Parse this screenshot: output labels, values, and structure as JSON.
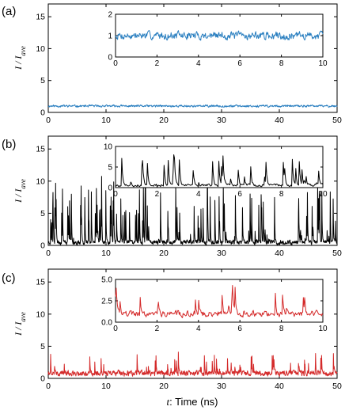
{
  "chart_data": [
    {
      "type": "line",
      "panel_label": "(a)",
      "ylabel_main": "I",
      "ylabel_sep": " / ",
      "ylabel_sub_base": "I",
      "ylabel_sub": "ave",
      "xlim": [
        0,
        50
      ],
      "ylim": [
        0,
        17
      ],
      "xticks": [
        0,
        10,
        20,
        30,
        40,
        50
      ],
      "yticks": [
        0,
        5,
        10,
        15
      ],
      "color": "#2a7fc0",
      "series_profile": {
        "baseline": 1.0,
        "noise": 0.25,
        "spike_prob": 0.0,
        "spike_max": 0,
        "x_max": 50,
        "points": 900,
        "seed": 11,
        "max_val": 2.2
      },
      "inset": {
        "xlim": [
          0,
          10
        ],
        "ylim": [
          0,
          2
        ],
        "xticks": [
          0,
          2,
          4,
          6,
          8,
          10
        ],
        "yticks": [
          0,
          1,
          2
        ],
        "series_profile": {
          "baseline": 1.0,
          "noise": 0.28,
          "spike_prob": 0.0,
          "spike_max": 0,
          "x_max": 10,
          "points": 400,
          "seed": 7,
          "max_val": 1.9
        }
      }
    },
    {
      "type": "line",
      "panel_label": "(b)",
      "ylabel_main": "I",
      "ylabel_sep": " / ",
      "ylabel_sub_base": "I",
      "ylabel_sub": "ave",
      "xlim": [
        0,
        50
      ],
      "ylim": [
        0,
        17
      ],
      "xticks": [
        0,
        10,
        20,
        30,
        40,
        50
      ],
      "yticks": [
        0,
        5,
        10,
        15
      ],
      "color": "#000000",
      "series_profile": {
        "baseline": 0.5,
        "noise": 0.5,
        "spike_prob": 0.12,
        "spike_max": 9,
        "x_max": 50,
        "points": 1100,
        "seed": 23,
        "max_val": 11
      },
      "inset": {
        "xlim": [
          0,
          10
        ],
        "ylim": [
          0,
          10
        ],
        "xticks": [
          0,
          2,
          4,
          6,
          8,
          10
        ],
        "yticks": [
          0,
          5,
          10
        ],
        "series_profile": {
          "baseline": 0.6,
          "noise": 0.5,
          "spike_prob": 0.1,
          "spike_max": 6.5,
          "x_max": 10,
          "points": 300,
          "seed": 5,
          "max_val": 8
        }
      }
    },
    {
      "type": "line",
      "panel_label": "(c)",
      "ylabel_main": "I",
      "ylabel_sep": " / ",
      "ylabel_sub_base": "I",
      "ylabel_sub": "ave",
      "xlim": [
        0,
        50
      ],
      "ylim": [
        0,
        17
      ],
      "xticks": [
        0,
        10,
        20,
        30,
        40,
        50
      ],
      "yticks": [
        0,
        5,
        10,
        15
      ],
      "color": "#d42a2a",
      "series_profile": {
        "baseline": 0.8,
        "noise": 0.6,
        "spike_prob": 0.06,
        "spike_max": 3.2,
        "x_max": 50,
        "points": 1100,
        "seed": 41,
        "max_val": 4.8
      },
      "inset": {
        "xlim": [
          0,
          10
        ],
        "ylim": [
          0,
          5
        ],
        "xticks": [
          0,
          2,
          4,
          6,
          8,
          10
        ],
        "yticks": [
          0.0,
          2.5,
          5.0
        ],
        "yticks_labels": [
          "0.0",
          "2.5",
          "5.0"
        ],
        "series_profile": {
          "baseline": 1.0,
          "noise": 0.55,
          "spike_prob": 0.07,
          "spike_max": 2.6,
          "x_max": 10,
          "points": 320,
          "seed": 19,
          "max_val": 4.6
        }
      }
    }
  ],
  "xlabel_var": "t",
  "xlabel_rest": ": Time (ns)"
}
